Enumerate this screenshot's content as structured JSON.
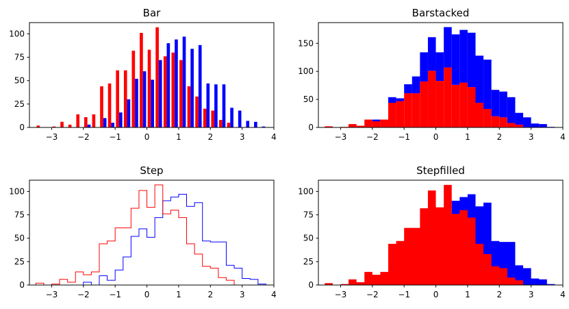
{
  "chart_data": [
    {
      "type": "bar",
      "histtype": "bar",
      "title": "Bar",
      "xlabel": "",
      "ylabel": "",
      "xlim": [
        -3.7,
        4.0
      ],
      "ylim": [
        0,
        112
      ],
      "xticks": [
        -3,
        -2,
        -1,
        0,
        1,
        2,
        3,
        4
      ],
      "yticks": [
        0,
        25,
        50,
        75,
        100
      ],
      "bin_edges": [
        -3.5,
        -3.25,
        -3.0,
        -2.75,
        -2.5,
        -2.25,
        -2.0,
        -1.75,
        -1.5,
        -1.25,
        -1.0,
        -0.75,
        -0.5,
        -0.25,
        0.0,
        0.25,
        0.5,
        0.75,
        1.0,
        1.25,
        1.5,
        1.75,
        2.0,
        2.25,
        2.5,
        2.75,
        3.0,
        3.25,
        3.5,
        3.75,
        4.0
      ],
      "series": [
        {
          "color": "#ff0000",
          "values": [
            2,
            0,
            1,
            6,
            3,
            14,
            11,
            14,
            44,
            47,
            61,
            61,
            82,
            101,
            83,
            107,
            76,
            80,
            72,
            44,
            33,
            20,
            18,
            8,
            5,
            0,
            0,
            0,
            0,
            0
          ]
        },
        {
          "color": "#0000ff",
          "values": [
            0,
            0,
            0,
            0,
            0,
            0,
            3,
            0,
            10,
            5,
            16,
            30,
            52,
            60,
            51,
            72,
            90,
            94,
            97,
            84,
            88,
            47,
            46,
            46,
            21,
            18,
            7,
            6,
            1,
            0
          ]
        }
      ]
    },
    {
      "type": "bar",
      "histtype": "barstacked",
      "title": "Barstacked",
      "xlabel": "",
      "ylabel": "",
      "xlim": [
        -3.7,
        4.0
      ],
      "ylim": [
        0,
        187
      ],
      "xticks": [
        -3,
        -2,
        -1,
        0,
        1,
        2,
        3,
        4
      ],
      "yticks": [
        0,
        50,
        100,
        150
      ],
      "bin_edges": [
        -3.5,
        -3.25,
        -3.0,
        -2.75,
        -2.5,
        -2.25,
        -2.0,
        -1.75,
        -1.5,
        -1.25,
        -1.0,
        -0.75,
        -0.5,
        -0.25,
        0.0,
        0.25,
        0.5,
        0.75,
        1.0,
        1.25,
        1.5,
        1.75,
        2.0,
        2.25,
        2.5,
        2.75,
        3.0,
        3.25,
        3.5,
        3.75,
        4.0
      ],
      "series": [
        {
          "color": "#ff0000",
          "values": [
            2,
            0,
            1,
            6,
            3,
            14,
            11,
            14,
            44,
            47,
            61,
            61,
            82,
            101,
            83,
            107,
            76,
            80,
            72,
            44,
            33,
            20,
            18,
            8,
            5,
            0,
            0,
            0,
            0,
            0
          ]
        },
        {
          "color": "#0000ff",
          "values": [
            0,
            0,
            0,
            0,
            0,
            0,
            3,
            0,
            10,
            5,
            16,
            30,
            52,
            60,
            51,
            72,
            90,
            94,
            97,
            84,
            88,
            47,
            46,
            46,
            21,
            18,
            7,
            6,
            1,
            0
          ]
        }
      ]
    },
    {
      "type": "line",
      "histtype": "step",
      "title": "Step",
      "xlabel": "",
      "ylabel": "",
      "xlim": [
        -3.7,
        4.0
      ],
      "ylim": [
        0,
        112
      ],
      "xticks": [
        -3,
        -2,
        -1,
        0,
        1,
        2,
        3,
        4
      ],
      "yticks": [
        0,
        25,
        50,
        75,
        100
      ],
      "bin_edges": [
        -3.5,
        -3.25,
        -3.0,
        -2.75,
        -2.5,
        -2.25,
        -2.0,
        -1.75,
        -1.5,
        -1.25,
        -1.0,
        -0.75,
        -0.5,
        -0.25,
        0.0,
        0.25,
        0.5,
        0.75,
        1.0,
        1.25,
        1.5,
        1.75,
        2.0,
        2.25,
        2.5,
        2.75,
        3.0,
        3.25,
        3.5,
        3.75,
        4.0
      ],
      "series": [
        {
          "color": "#ff0000",
          "values": [
            2,
            0,
            1,
            6,
            3,
            14,
            11,
            14,
            44,
            47,
            61,
            61,
            82,
            101,
            83,
            107,
            76,
            80,
            72,
            44,
            33,
            20,
            18,
            8,
            5,
            0,
            0,
            0,
            0,
            0
          ]
        },
        {
          "color": "#0000ff",
          "values": [
            0,
            0,
            0,
            0,
            0,
            0,
            3,
            0,
            10,
            5,
            16,
            30,
            52,
            60,
            51,
            72,
            90,
            94,
            97,
            84,
            88,
            47,
            46,
            46,
            21,
            18,
            7,
            6,
            1,
            0
          ]
        }
      ]
    },
    {
      "type": "area",
      "histtype": "stepfilled",
      "title": "Stepfilled",
      "xlabel": "",
      "ylabel": "",
      "xlim": [
        -3.7,
        4.0
      ],
      "ylim": [
        0,
        112
      ],
      "xticks": [
        -3,
        -2,
        -1,
        0,
        1,
        2,
        3,
        4
      ],
      "yticks": [
        0,
        25,
        50,
        75,
        100
      ],
      "bin_edges": [
        -3.5,
        -3.25,
        -3.0,
        -2.75,
        -2.5,
        -2.25,
        -2.0,
        -1.75,
        -1.5,
        -1.25,
        -1.0,
        -0.75,
        -0.5,
        -0.25,
        0.0,
        0.25,
        0.5,
        0.75,
        1.0,
        1.25,
        1.5,
        1.75,
        2.0,
        2.25,
        2.5,
        2.75,
        3.0,
        3.25,
        3.5,
        3.75,
        4.0
      ],
      "series": [
        {
          "color": "#ff0000",
          "values": [
            2,
            0,
            1,
            6,
            3,
            14,
            11,
            14,
            44,
            47,
            61,
            61,
            82,
            101,
            83,
            107,
            76,
            80,
            72,
            44,
            33,
            20,
            18,
            8,
            5,
            0,
            0,
            0,
            0,
            0
          ]
        },
        {
          "color": "#0000ff",
          "values": [
            0,
            0,
            0,
            0,
            0,
            0,
            3,
            0,
            10,
            5,
            16,
            30,
            52,
            60,
            51,
            72,
            90,
            94,
            97,
            84,
            88,
            47,
            46,
            46,
            21,
            18,
            7,
            6,
            1,
            0
          ]
        }
      ]
    }
  ]
}
